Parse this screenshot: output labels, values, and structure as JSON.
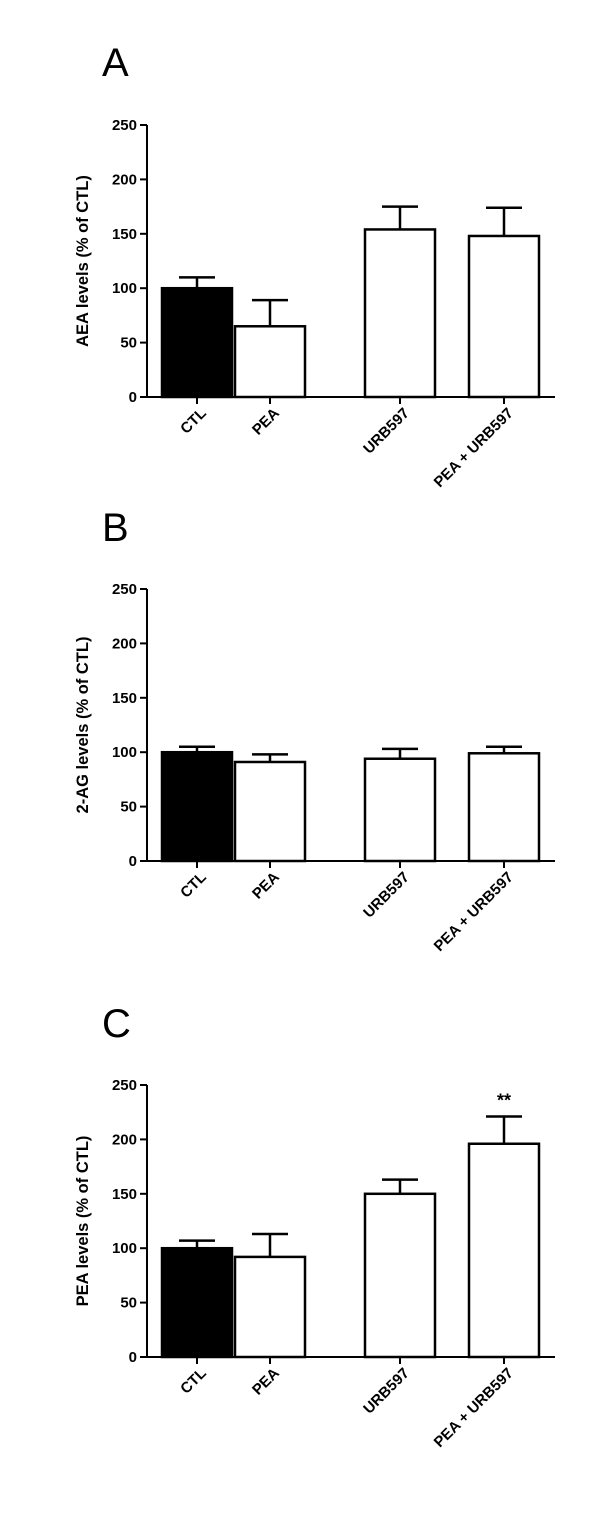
{
  "chart_data": [
    {
      "panel": "A",
      "type": "bar",
      "categories": [
        "CTL",
        "PEA",
        "URB597",
        "PEA + URB597"
      ],
      "values": [
        100,
        65,
        154,
        148
      ],
      "errors": [
        10,
        24,
        21,
        26
      ],
      "fills": [
        "#000000",
        "#ffffff",
        "#ffffff",
        "#ffffff"
      ],
      "ylabel": "AEA levels (% of CTL)",
      "ylim": [
        0,
        250
      ],
      "yticks": [
        0,
        50,
        100,
        150,
        200,
        250
      ],
      "annotations": []
    },
    {
      "panel": "B",
      "type": "bar",
      "categories": [
        "CTL",
        "PEA",
        "URB597",
        "PEA + URB597"
      ],
      "values": [
        100,
        91,
        94,
        99
      ],
      "errors": [
        5,
        7,
        9,
        6
      ],
      "fills": [
        "#000000",
        "#ffffff",
        "#ffffff",
        "#ffffff"
      ],
      "ylabel": "2-AG levels (% of CTL)",
      "ylim": [
        0,
        250
      ],
      "yticks": [
        0,
        50,
        100,
        150,
        200,
        250
      ],
      "annotations": []
    },
    {
      "panel": "C",
      "type": "bar",
      "categories": [
        "CTL",
        "PEA",
        "URB597",
        "PEA + URB597"
      ],
      "values": [
        100,
        92,
        150,
        196
      ],
      "errors": [
        7,
        21,
        13,
        25
      ],
      "fills": [
        "#000000",
        "#ffffff",
        "#ffffff",
        "#ffffff"
      ],
      "ylabel": "PEA levels (% of CTL)",
      "ylim": [
        0,
        250
      ],
      "yticks": [
        0,
        50,
        100,
        150,
        200,
        250
      ],
      "annotations": [
        {
          "category": "PEA + URB597",
          "text": "**"
        }
      ]
    }
  ]
}
